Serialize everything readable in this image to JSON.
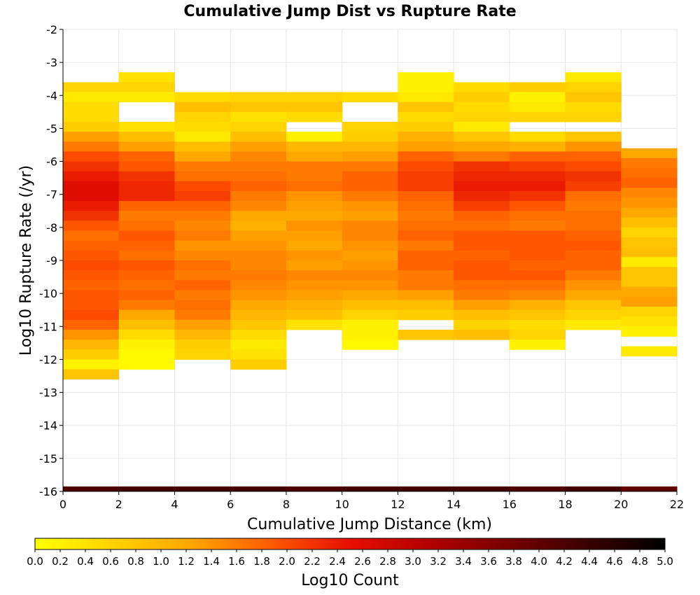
{
  "chart_data": {
    "type": "heatmap",
    "title": "Cumulative Jump Dist vs Rupture Rate",
    "xlabel": "Cumulative Jump Distance (km)",
    "ylabel": "Log10 Rupture Rate (/yr)",
    "xlim": [
      0,
      22
    ],
    "ylim": [
      -16,
      -2
    ],
    "x_ticks": [
      "0",
      "2",
      "4",
      "6",
      "8",
      "10",
      "12",
      "14",
      "16",
      "18",
      "20",
      "22"
    ],
    "y_ticks": [
      "-2",
      "-3",
      "-4",
      "-5",
      "-6",
      "-7",
      "-8",
      "-9",
      "-10",
      "-11",
      "-12",
      "-13",
      "-14",
      "-15",
      "-16"
    ],
    "x_bin_width": 2,
    "y_bin_width": 0.3,
    "grid": true,
    "colorbar": {
      "label": "Log10 Count",
      "min": 0.0,
      "max": 5.0,
      "ticks": [
        "0.0",
        "0.2",
        "0.4",
        "0.6",
        "0.8",
        "1.0",
        "1.2",
        "1.4",
        "1.6",
        "1.8",
        "2.0",
        "2.2",
        "2.4",
        "2.6",
        "2.8",
        "3.0",
        "3.2",
        "3.4",
        "3.6",
        "3.8",
        "4.0",
        "4.2",
        "4.4",
        "4.6",
        "4.8",
        "5.0"
      ],
      "colors": [
        "#ffff00",
        "#ffd200",
        "#ffa500",
        "#ff5a00",
        "#e60f00",
        "#b40000",
        "#780000",
        "#3c0000",
        "#000000"
      ]
    },
    "columns": [
      {
        "x": 0,
        "y_top": -3.6,
        "values": [
          0.6,
          0.3,
          0.5,
          0.5,
          0.7,
          1.3,
          1.6,
          2.0,
          2.2,
          2.4,
          2.6,
          2.6,
          2.4,
          2.2,
          1.9,
          1.7,
          1.8,
          1.9,
          2.0,
          1.9,
          1.8,
          1.9,
          1.9,
          2.0,
          1.8,
          1.4,
          1.0,
          0.7,
          0.2,
          0.8
        ]
      },
      {
        "x": 2,
        "y_top": -3.3,
        "values": [
          0.4,
          0.6,
          0.3,
          null,
          null,
          0.4,
          0.9,
          1.3,
          1.8,
          1.9,
          2.2,
          2.3,
          2.3,
          1.8,
          1.6,
          1.7,
          1.9,
          1.8,
          1.7,
          1.9,
          1.8,
          1.7,
          1.8,
          1.6,
          1.2,
          0.9,
          0.5,
          0.2,
          0.1,
          0.1
        ]
      },
      {
        "x": 4,
        "y_top": -3.9,
        "values": [
          0.5,
          0.9,
          0.6,
          0.5,
          0.3,
          0.9,
          1.2,
          1.6,
          1.7,
          2.0,
          2.1,
          1.8,
          1.6,
          1.5,
          1.6,
          1.4,
          1.5,
          1.7,
          1.6,
          1.8,
          1.6,
          1.7,
          1.6,
          1.3,
          1.0,
          0.7,
          0.6
        ]
      },
      {
        "x": 6,
        "y_top": -3.9,
        "values": [
          0.6,
          0.8,
          0.4,
          0.6,
          0.9,
          1.3,
          1.5,
          1.6,
          1.7,
          1.8,
          1.6,
          1.5,
          1.2,
          1.1,
          1.3,
          1.4,
          1.5,
          1.5,
          1.6,
          1.5,
          1.4,
          1.2,
          1.0,
          0.8,
          0.5,
          0.3,
          0.4,
          0.7
        ]
      },
      {
        "x": 8,
        "y_top": -3.9,
        "values": [
          0.6,
          0.8,
          0.5,
          null,
          0.2,
          1.0,
          1.2,
          1.6,
          1.6,
          1.7,
          1.4,
          1.3,
          1.2,
          1.4,
          1.3,
          1.2,
          1.4,
          1.3,
          1.5,
          1.4,
          1.3,
          1.1,
          0.9,
          0.4
        ]
      },
      {
        "x": 10,
        "y_top": -3.9,
        "values": [
          0.5,
          null,
          null,
          0.6,
          0.7,
          1.0,
          1.3,
          1.6,
          1.8,
          1.8,
          1.6,
          1.4,
          1.3,
          1.5,
          1.5,
          1.4,
          1.3,
          1.4,
          1.5,
          1.4,
          1.2,
          0.9,
          0.6,
          0.2,
          0.2,
          0.1
        ]
      },
      {
        "x": 12,
        "y_top": -3.3,
        "values": [
          0.2,
          0.2,
          0.3,
          0.8,
          0.5,
          0.7,
          1.1,
          1.3,
          1.8,
          2.0,
          2.1,
          2.1,
          1.8,
          1.7,
          1.6,
          1.7,
          1.8,
          1.6,
          1.8,
          1.8,
          1.6,
          1.6,
          1.3,
          0.9,
          0.7,
          null,
          0.8
        ]
      },
      {
        "x": 14,
        "y_top": -3.6,
        "values": [
          0.5,
          0.7,
          0.5,
          0.6,
          0.3,
          0.8,
          1.2,
          1.6,
          2.2,
          2.3,
          2.4,
          2.3,
          2.1,
          1.8,
          1.7,
          1.9,
          1.9,
          1.8,
          1.9,
          1.9,
          1.7,
          1.6,
          1.3,
          0.9,
          0.6,
          0.9
        ]
      },
      {
        "x": 16,
        "y_top": -3.6,
        "values": [
          0.7,
          0.2,
          0.3,
          0.6,
          null,
          0.5,
          1.1,
          1.8,
          2.1,
          2.3,
          2.4,
          2.2,
          1.9,
          1.7,
          1.6,
          1.9,
          1.9,
          1.9,
          1.8,
          1.9,
          1.7,
          1.5,
          1.1,
          0.8,
          0.5,
          0.6,
          0.2
        ]
      },
      {
        "x": 18,
        "y_top": -3.3,
        "values": [
          0.3,
          0.6,
          0.8,
          0.5,
          0.6,
          null,
          0.8,
          1.4,
          1.8,
          2.0,
          2.2,
          2.1,
          1.7,
          1.6,
          1.7,
          1.7,
          1.8,
          1.9,
          1.8,
          1.8,
          1.6,
          1.4,
          1.2,
          0.8,
          0.6,
          0.3
        ]
      },
      {
        "x": 20,
        "y_top": -5.6,
        "values": [
          1.2,
          1.6,
          1.7,
          1.8,
          1.5,
          1.4,
          1.2,
          0.9,
          0.6,
          0.8,
          0.9,
          0.3,
          0.8,
          0.8,
          1.2,
          1.3,
          0.6,
          0.4,
          0.2,
          null,
          0.3
        ]
      }
    ],
    "bottom_band": {
      "y_from": -16.0,
      "y_to": -15.85,
      "values": [
        4.2,
        4.3,
        4.3,
        4.3,
        4.2,
        4.3,
        4.3,
        4.3,
        4.2,
        4.3,
        4.0
      ]
    }
  }
}
